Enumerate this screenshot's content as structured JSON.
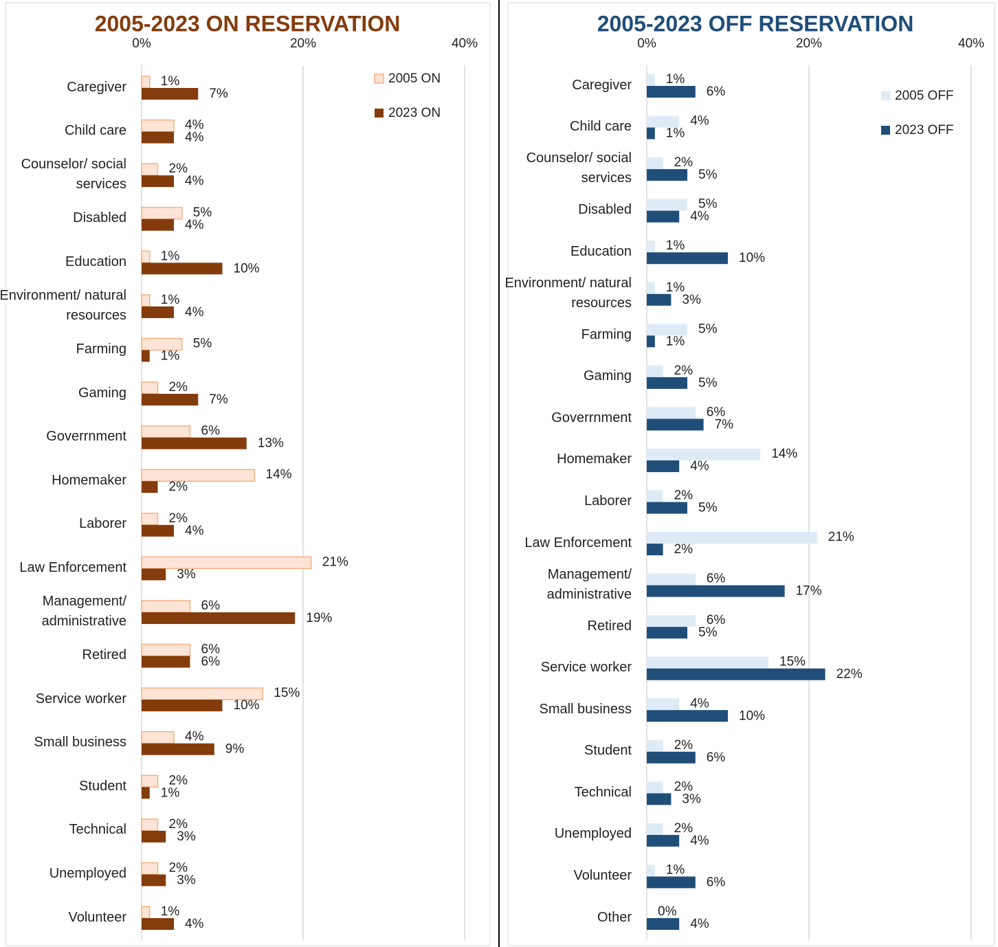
{
  "chart_data": [
    {
      "type": "bar",
      "orientation": "horizontal",
      "title": "2005-2023 ON RESERVATION",
      "title_color": "#843c0c",
      "categories": [
        "Caregiver",
        "Child care",
        "Counselor/ social services",
        "Disabled",
        "Education",
        "Environment/ natural resources",
        "Farming",
        "Gaming",
        "Goverrnment",
        "Homemaker",
        "Laborer",
        "Law Enforcement",
        "Management/ administrative",
        "Retired",
        "Service worker",
        "Small business",
        "Student",
        "Technical",
        "Unemployed",
        "Volunteer"
      ],
      "series": [
        {
          "name": "2005 ON",
          "color": "#fce4d6",
          "edgecolor": "#f4b183",
          "values": [
            1,
            4,
            2,
            5,
            1,
            1,
            5,
            2,
            6,
            14,
            2,
            21,
            6,
            6,
            15,
            4,
            2,
            2,
            2,
            1
          ],
          "value_labels": [
            "1%",
            "4%",
            "2%",
            "5%",
            "1%",
            "1%",
            "5%",
            "2%",
            "6%",
            "14%",
            "2%",
            "21%",
            "6%",
            "6%",
            "15%",
            "4%",
            "2%",
            "2%",
            "2%",
            "1%"
          ]
        },
        {
          "name": "2023 ON",
          "color": "#843c0c",
          "values": [
            7,
            4,
            4,
            4,
            10,
            4,
            1,
            7,
            13,
            2,
            4,
            3,
            19,
            6,
            10,
            9,
            1,
            3,
            3,
            4
          ],
          "value_labels": [
            "7%",
            "4%",
            "4%",
            "4%",
            "10%",
            "4%",
            "1%",
            "7%",
            "13%",
            "2%",
            "4%",
            "3%",
            "19%",
            "6%",
            "10%",
            "9%",
            "1%",
            "3%",
            "3%",
            "4%"
          ]
        }
      ],
      "xlim": [
        0,
        40
      ],
      "xticks": [
        {
          "value": 0,
          "label": "0%"
        },
        {
          "value": 20,
          "label": "20%"
        },
        {
          "value": 40,
          "label": "40%"
        }
      ],
      "grid": true,
      "legend": "upper right"
    },
    {
      "type": "bar",
      "orientation": "horizontal",
      "title": "2005-2023 OFF RESERVATION",
      "title_color": "#1f4e79",
      "categories": [
        "Caregiver",
        "Child care",
        "Counselor/ social services",
        "Disabled",
        "Education",
        "Environment/ natural resources",
        "Farming",
        "Gaming",
        "Goverrnment",
        "Homemaker",
        "Laborer",
        "Law Enforcement",
        "Management/ administrative",
        "Retired",
        "Service worker",
        "Small business",
        "Student",
        "Technical",
        "Unemployed",
        "Volunteer",
        "Other"
      ],
      "series": [
        {
          "name": "2005 OFF",
          "color": "#deebf7",
          "values": [
            1,
            4,
            2,
            5,
            1,
            1,
            5,
            2,
            6,
            14,
            2,
            21,
            6,
            6,
            15,
            4,
            2,
            2,
            2,
            1,
            0
          ],
          "value_labels": [
            "1%",
            "4%",
            "2%",
            "5%",
            "1%",
            "1%",
            "5%",
            "2%",
            "6%",
            "14%",
            "2%",
            "21%",
            "6%",
            "6%",
            "15%",
            "4%",
            "2%",
            "2%",
            "2%",
            "1%",
            "0%"
          ]
        },
        {
          "name": "2023 OFF",
          "color": "#1f4e79",
          "values": [
            6,
            1,
            5,
            4,
            10,
            3,
            1,
            5,
            7,
            4,
            5,
            2,
            17,
            5,
            22,
            10,
            6,
            3,
            4,
            6,
            4
          ],
          "value_labels": [
            "6%",
            "1%",
            "5%",
            "4%",
            "10%",
            "3%",
            "1%",
            "5%",
            "7%",
            "4%",
            "5%",
            "2%",
            "17%",
            "5%",
            "22%",
            "10%",
            "6%",
            "3%",
            "4%",
            "6%",
            "4%"
          ]
        }
      ],
      "xlim": [
        0,
        40
      ],
      "xticks": [
        {
          "value": 0,
          "label": "0%"
        },
        {
          "value": 20,
          "label": "20%"
        },
        {
          "value": 40,
          "label": "40%"
        }
      ],
      "grid": true,
      "legend": "upper right"
    }
  ]
}
